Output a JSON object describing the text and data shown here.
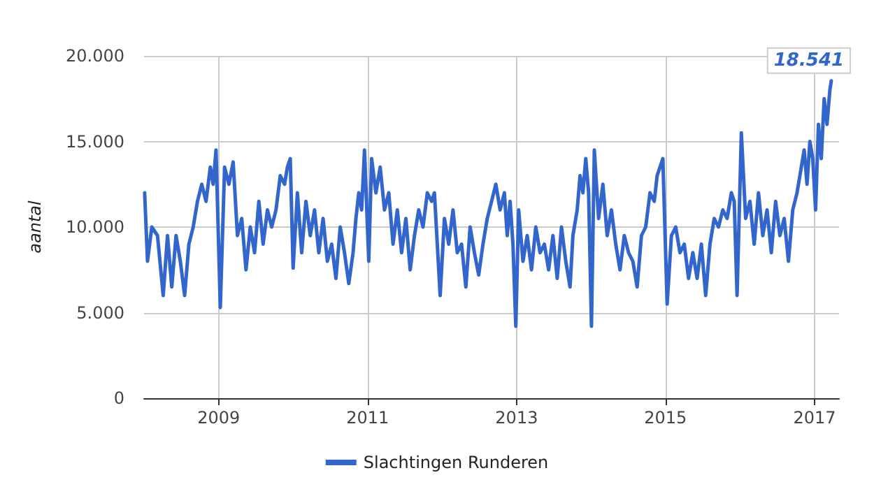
{
  "chart_data": {
    "type": "line",
    "ylabel": "aantal",
    "legend": "bottom",
    "grid": true,
    "marker": "none",
    "line_style": "solid",
    "xlim": [
      "2008-01-01",
      "2017-05-01"
    ],
    "xticks": [
      {
        "value": "2009-01-01",
        "label": "2009"
      },
      {
        "value": "2011-01-01",
        "label": "2011"
      },
      {
        "value": "2013-01-01",
        "label": "2013"
      },
      {
        "value": "2015-01-01",
        "label": "2015"
      },
      {
        "value": "2017-01-01",
        "label": "2017"
      }
    ],
    "ylim": [
      0,
      20000
    ],
    "yticks": [
      {
        "value": 0,
        "label": "0"
      },
      {
        "value": 5000,
        "label": "5.000"
      },
      {
        "value": 10000,
        "label": "10.000"
      },
      {
        "value": 15000,
        "label": "15.000"
      },
      {
        "value": 20000,
        "label": "20.000"
      }
    ],
    "x": [
      "2008-01-04",
      "2008-01-18",
      "2008-02-08",
      "2008-03-07",
      "2008-04-04",
      "2008-04-25",
      "2008-05-16",
      "2008-06-06",
      "2008-06-27",
      "2008-07-18",
      "2008-08-08",
      "2008-08-29",
      "2008-09-19",
      "2008-10-10",
      "2008-10-31",
      "2008-11-21",
      "2008-12-05",
      "2008-12-19",
      "2009-01-09",
      "2009-01-30",
      "2009-02-20",
      "2009-03-13",
      "2009-04-03",
      "2009-04-24",
      "2009-05-15",
      "2009-06-05",
      "2009-06-26",
      "2009-07-17",
      "2009-08-07",
      "2009-08-28",
      "2009-09-18",
      "2009-10-09",
      "2009-10-30",
      "2009-11-20",
      "2009-12-04",
      "2009-12-18",
      "2010-01-01",
      "2010-01-22",
      "2010-02-12",
      "2010-03-05",
      "2010-03-26",
      "2010-04-16",
      "2010-05-07",
      "2010-05-28",
      "2010-06-18",
      "2010-07-09",
      "2010-07-30",
      "2010-08-20",
      "2010-09-10",
      "2010-10-01",
      "2010-10-22",
      "2010-11-05",
      "2010-11-19",
      "2010-12-03",
      "2010-12-17",
      "2011-01-07",
      "2011-01-21",
      "2011-02-11",
      "2011-03-04",
      "2011-03-25",
      "2011-04-15",
      "2011-05-06",
      "2011-05-27",
      "2011-06-17",
      "2011-07-08",
      "2011-07-29",
      "2011-08-19",
      "2011-09-09",
      "2011-09-30",
      "2011-10-21",
      "2011-11-11",
      "2011-11-25",
      "2011-12-09",
      "2011-12-23",
      "2012-01-13",
      "2012-02-03",
      "2012-02-24",
      "2012-03-16",
      "2012-04-06",
      "2012-04-27",
      "2012-05-18",
      "2012-06-08",
      "2012-06-29",
      "2012-07-20",
      "2012-08-10",
      "2012-08-31",
      "2012-09-21",
      "2012-10-12",
      "2012-11-02",
      "2012-11-16",
      "2012-11-30",
      "2012-12-14",
      "2012-12-28",
      "2013-01-11",
      "2013-02-01",
      "2013-02-22",
      "2013-03-15",
      "2013-04-05",
      "2013-04-26",
      "2013-05-17",
      "2013-06-07",
      "2013-06-28",
      "2013-07-19",
      "2013-08-09",
      "2013-08-30",
      "2013-09-20",
      "2013-10-04",
      "2013-10-25",
      "2013-11-08",
      "2013-11-22",
      "2013-12-06",
      "2013-12-20",
      "2014-01-03",
      "2014-01-17",
      "2014-02-07",
      "2014-02-28",
      "2014-03-21",
      "2014-04-11",
      "2014-05-02",
      "2014-05-23",
      "2014-06-13",
      "2014-07-04",
      "2014-07-25",
      "2014-08-15",
      "2014-09-05",
      "2014-09-26",
      "2014-10-17",
      "2014-11-07",
      "2014-11-21",
      "2014-12-05",
      "2014-12-19",
      "2015-01-09",
      "2015-01-30",
      "2015-02-20",
      "2015-03-13",
      "2015-04-03",
      "2015-04-24",
      "2015-05-15",
      "2015-06-05",
      "2015-06-26",
      "2015-07-17",
      "2015-08-07",
      "2015-08-28",
      "2015-09-18",
      "2015-10-09",
      "2015-10-30",
      "2015-11-20",
      "2015-12-04",
      "2015-12-18",
      "2016-01-08",
      "2016-01-29",
      "2016-02-19",
      "2016-03-11",
      "2016-04-01",
      "2016-04-22",
      "2016-05-13",
      "2016-06-03",
      "2016-06-24",
      "2016-07-15",
      "2016-08-05",
      "2016-08-26",
      "2016-09-16",
      "2016-10-07",
      "2016-10-28",
      "2016-11-11",
      "2016-11-25",
      "2016-12-09",
      "2016-12-23",
      "2017-01-06",
      "2017-01-20",
      "2017-02-03",
      "2017-02-17",
      "2017-03-03",
      "2017-03-17",
      "2017-03-24"
    ],
    "series": [
      {
        "name": "Slachtingen Runderen",
        "color": "#3366cc",
        "values": [
          12000,
          8000,
          10000,
          9500,
          6000,
          9500,
          6500,
          9500,
          8000,
          6000,
          9000,
          10000,
          11500,
          12500,
          11500,
          13500,
          12500,
          14500,
          5300,
          13500,
          12500,
          13800,
          9500,
          10500,
          7500,
          10000,
          8500,
          11500,
          9000,
          11000,
          10000,
          11000,
          13000,
          12500,
          13500,
          14000,
          7600,
          12000,
          8500,
          11500,
          9500,
          11000,
          8500,
          10500,
          8000,
          9000,
          7000,
          10000,
          8500,
          6700,
          8500,
          10500,
          12000,
          11000,
          14500,
          8000,
          14000,
          12000,
          13500,
          11000,
          12000,
          9000,
          11000,
          8500,
          10500,
          7500,
          9500,
          11000,
          10000,
          12000,
          11500,
          12000,
          9000,
          6000,
          10500,
          9000,
          11000,
          8500,
          9000,
          6500,
          10000,
          8500,
          7200,
          9000,
          10500,
          11500,
          12500,
          11000,
          12000,
          9500,
          11500,
          9000,
          4200,
          11000,
          8000,
          9500,
          7500,
          10000,
          8500,
          9000,
          7500,
          9500,
          7000,
          10000,
          8000,
          6500,
          9500,
          11000,
          13000,
          12000,
          14000,
          12000,
          4200,
          14500,
          10500,
          12500,
          9500,
          11000,
          9000,
          7500,
          9500,
          8500,
          8000,
          6500,
          9500,
          10000,
          12000,
          11500,
          13000,
          13500,
          14000,
          5500,
          9500,
          10000,
          8500,
          9000,
          7000,
          8500,
          7000,
          9000,
          6000,
          9000,
          10500,
          10000,
          11000,
          10500,
          12000,
          11500,
          6000,
          15500,
          10500,
          11500,
          9000,
          12000,
          9500,
          11000,
          8500,
          11500,
          9500,
          10500,
          8000,
          11000,
          12000,
          13500,
          14500,
          12500,
          15000,
          14000,
          11000,
          16000,
          14000,
          17500,
          16000,
          18000,
          18541
        ],
        "value_labels": [
          null,
          null,
          null,
          null,
          null,
          null,
          null,
          null,
          null,
          null,
          null,
          null,
          null,
          null,
          null,
          null,
          null,
          null,
          null,
          null,
          null,
          null,
          null,
          null,
          null,
          null,
          null,
          null,
          null,
          null,
          null,
          null,
          null,
          null,
          null,
          null,
          null,
          null,
          null,
          null,
          null,
          null,
          null,
          null,
          null,
          null,
          null,
          null,
          null,
          null,
          null,
          null,
          null,
          null,
          null,
          null,
          null,
          null,
          null,
          null,
          null,
          null,
          null,
          null,
          null,
          null,
          null,
          null,
          null,
          null,
          null,
          null,
          null,
          null,
          null,
          null,
          null,
          null,
          null,
          null,
          null,
          null,
          null,
          null,
          null,
          null,
          null,
          null,
          null,
          null,
          null,
          null,
          null,
          null,
          null,
          null,
          null,
          null,
          null,
          null,
          null,
          null,
          null,
          null,
          null,
          null,
          null,
          null,
          null,
          null,
          null,
          null,
          null,
          null,
          null,
          null,
          null,
          null,
          null,
          null,
          null,
          null,
          null,
          null,
          null,
          null,
          null,
          null,
          null,
          null,
          null,
          null,
          null,
          null,
          null,
          null,
          null,
          null,
          null,
          null,
          null,
          null,
          null,
          null,
          null,
          null,
          null,
          null,
          null,
          null,
          null,
          null,
          null,
          null,
          null,
          null,
          null,
          null,
          null,
          null,
          null,
          null,
          null,
          null,
          null,
          null,
          null,
          null,
          null,
          null,
          null,
          null,
          null,
          null,
          "18.541"
        ]
      }
    ]
  }
}
